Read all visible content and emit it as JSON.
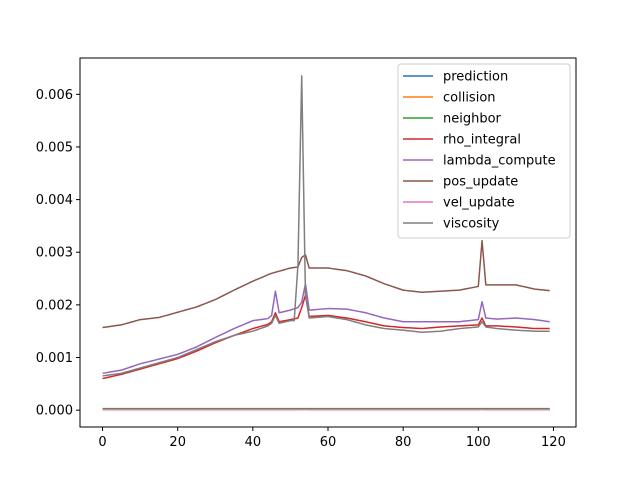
{
  "chart_data": {
    "type": "line",
    "title": "",
    "xlabel": "",
    "ylabel": "",
    "xlim": [
      -6,
      126
    ],
    "ylim": [
      -0.00032,
      0.00669
    ],
    "xticks": [
      0,
      20,
      40,
      60,
      80,
      100,
      120
    ],
    "xtick_labels": [
      "0",
      "20",
      "40",
      "60",
      "80",
      "100",
      "120"
    ],
    "yticks": [
      0.0,
      0.001,
      0.002,
      0.003,
      0.004,
      0.005,
      0.006
    ],
    "ytick_labels": [
      "0.000",
      "0.001",
      "0.002",
      "0.003",
      "0.004",
      "0.005",
      "0.006"
    ],
    "grid": false,
    "legend_position": "top-right",
    "n_points": 120,
    "series": [
      {
        "name": "prediction",
        "color": "#1f77b4",
        "keypoints": [
          [
            0,
            2e-05
          ],
          [
            119,
            2e-05
          ]
        ]
      },
      {
        "name": "collision",
        "color": "#ff7f0e",
        "keypoints": [
          [
            0,
            1e-05
          ],
          [
            53,
            1e-05
          ],
          [
            54,
            3e-05
          ],
          [
            55,
            1e-05
          ],
          [
            100,
            1e-05
          ],
          [
            101,
            3e-05
          ],
          [
            102,
            1e-05
          ],
          [
            119,
            1e-05
          ]
        ]
      },
      {
        "name": "neighbor",
        "color": "#2ca02c",
        "keypoints": [
          [
            0,
            3e-05
          ],
          [
            119,
            3e-05
          ]
        ]
      },
      {
        "name": "rho_integral",
        "color": "#d62728",
        "keypoints": [
          [
            0,
            0.0006
          ],
          [
            5,
            0.00068
          ],
          [
            10,
            0.00078
          ],
          [
            15,
            0.00088
          ],
          [
            20,
            0.00098
          ],
          [
            25,
            0.00112
          ],
          [
            30,
            0.00128
          ],
          [
            35,
            0.00142
          ],
          [
            40,
            0.00155
          ],
          [
            44,
            0.00163
          ],
          [
            45,
            0.00168
          ],
          [
            46,
            0.00185
          ],
          [
            47,
            0.00168
          ],
          [
            50,
            0.00172
          ],
          [
            52,
            0.00175
          ],
          [
            53,
            0.00195
          ],
          [
            54,
            0.00218
          ],
          [
            55,
            0.00178
          ],
          [
            60,
            0.0018
          ],
          [
            65,
            0.00175
          ],
          [
            70,
            0.00168
          ],
          [
            75,
            0.0016
          ],
          [
            80,
            0.00157
          ],
          [
            85,
            0.00155
          ],
          [
            90,
            0.00158
          ],
          [
            95,
            0.0016
          ],
          [
            100,
            0.00162
          ],
          [
            101,
            0.00175
          ],
          [
            102,
            0.0016
          ],
          [
            105,
            0.0016
          ],
          [
            110,
            0.00158
          ],
          [
            115,
            0.00155
          ],
          [
            119,
            0.00155
          ]
        ]
      },
      {
        "name": "lambda_compute",
        "color": "#9467bd",
        "keypoints": [
          [
            0,
            0.0007
          ],
          [
            5,
            0.00076
          ],
          [
            10,
            0.00088
          ],
          [
            15,
            0.00097
          ],
          [
            20,
            0.00106
          ],
          [
            25,
            0.0012
          ],
          [
            30,
            0.00138
          ],
          [
            35,
            0.00155
          ],
          [
            40,
            0.0017
          ],
          [
            44,
            0.00174
          ],
          [
            45,
            0.0018
          ],
          [
            46,
            0.00226
          ],
          [
            47,
            0.00185
          ],
          [
            50,
            0.0019
          ],
          [
            52,
            0.00195
          ],
          [
            53,
            0.00205
          ],
          [
            54,
            0.0024
          ],
          [
            55,
            0.0019
          ],
          [
            60,
            0.00193
          ],
          [
            65,
            0.00192
          ],
          [
            70,
            0.00185
          ],
          [
            75,
            0.00175
          ],
          [
            80,
            0.00168
          ],
          [
            85,
            0.00168
          ],
          [
            90,
            0.00168
          ],
          [
            95,
            0.00168
          ],
          [
            100,
            0.00172
          ],
          [
            101,
            0.00206
          ],
          [
            102,
            0.00175
          ],
          [
            105,
            0.00173
          ],
          [
            110,
            0.00175
          ],
          [
            115,
            0.00172
          ],
          [
            119,
            0.00168
          ]
        ]
      },
      {
        "name": "pos_update",
        "color": "#8c564b",
        "keypoints": [
          [
            0,
            0.00157
          ],
          [
            5,
            0.00162
          ],
          [
            10,
            0.00172
          ],
          [
            15,
            0.00176
          ],
          [
            20,
            0.00186
          ],
          [
            25,
            0.00196
          ],
          [
            30,
            0.0021
          ],
          [
            35,
            0.00228
          ],
          [
            40,
            0.00245
          ],
          [
            45,
            0.0026
          ],
          [
            50,
            0.0027
          ],
          [
            52,
            0.00272
          ],
          [
            53,
            0.0029
          ],
          [
            54,
            0.00295
          ],
          [
            55,
            0.0027
          ],
          [
            60,
            0.0027
          ],
          [
            65,
            0.00265
          ],
          [
            70,
            0.00255
          ],
          [
            75,
            0.0024
          ],
          [
            80,
            0.00228
          ],
          [
            85,
            0.00224
          ],
          [
            90,
            0.00226
          ],
          [
            95,
            0.00228
          ],
          [
            100,
            0.00235
          ],
          [
            101,
            0.00322
          ],
          [
            102,
            0.00238
          ],
          [
            105,
            0.00238
          ],
          [
            110,
            0.00238
          ],
          [
            115,
            0.0023
          ],
          [
            119,
            0.00227
          ]
        ]
      },
      {
        "name": "vel_update",
        "color": "#e377c2",
        "keypoints": [
          [
            0,
            1e-05
          ],
          [
            119,
            1e-05
          ]
        ]
      },
      {
        "name": "viscosity",
        "color": "#7f7f7f",
        "keypoints": [
          [
            0,
            0.00065
          ],
          [
            5,
            0.0007
          ],
          [
            10,
            0.0008
          ],
          [
            15,
            0.0009
          ],
          [
            20,
            0.001
          ],
          [
            25,
            0.00115
          ],
          [
            30,
            0.0013
          ],
          [
            35,
            0.00142
          ],
          [
            40,
            0.0015
          ],
          [
            44,
            0.0016
          ],
          [
            45,
            0.00165
          ],
          [
            46,
            0.0018
          ],
          [
            47,
            0.00165
          ],
          [
            50,
            0.0017
          ],
          [
            51,
            0.0017
          ],
          [
            52,
            0.00275
          ],
          [
            53,
            0.00635
          ],
          [
            54,
            0.0022
          ],
          [
            55,
            0.00175
          ],
          [
            60,
            0.00178
          ],
          [
            65,
            0.00172
          ],
          [
            70,
            0.00162
          ],
          [
            75,
            0.00155
          ],
          [
            80,
            0.00152
          ],
          [
            85,
            0.00148
          ],
          [
            90,
            0.0015
          ],
          [
            95,
            0.00155
          ],
          [
            100,
            0.00158
          ],
          [
            101,
            0.00168
          ],
          [
            102,
            0.00158
          ],
          [
            105,
            0.00155
          ],
          [
            110,
            0.00152
          ],
          [
            115,
            0.0015
          ],
          [
            119,
            0.0015
          ]
        ]
      }
    ]
  }
}
